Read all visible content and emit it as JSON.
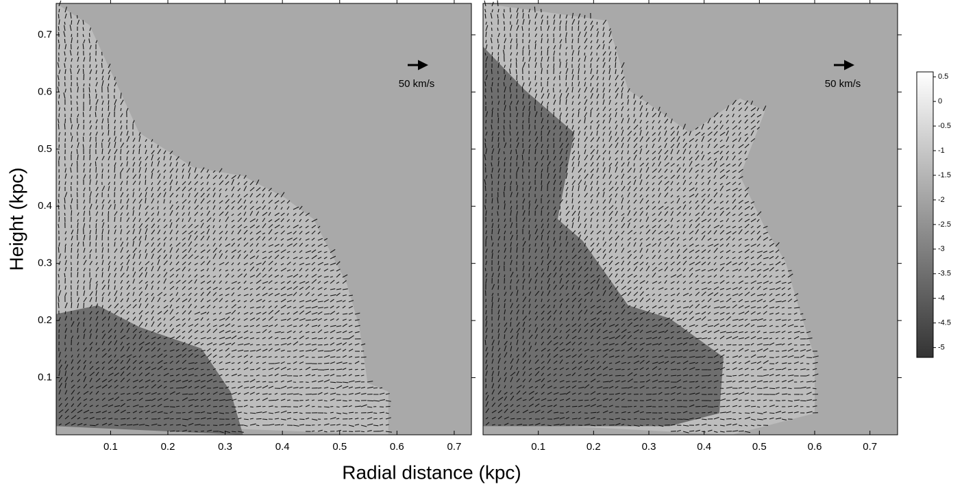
{
  "figure": {
    "xlabel": "Radial distance (kpc)",
    "ylabel": "Height (kpc)"
  },
  "chart_data": [
    {
      "type": "vector-field",
      "xlim": [
        0.005,
        0.73
      ],
      "ylim": [
        0,
        0.755
      ],
      "xticks": [
        0.1,
        0.2,
        0.3,
        0.4,
        0.5,
        0.6,
        0.7
      ],
      "yticks": [
        0.1,
        0.2,
        0.3,
        0.4,
        0.5,
        0.6,
        0.7
      ],
      "annotation": "50 km/s"
    },
    {
      "type": "vector-field",
      "xlim": [
        0,
        0.75
      ],
      "ylim": [
        0,
        0.755
      ],
      "xticks": [
        0.1,
        0.2,
        0.3,
        0.4,
        0.5,
        0.6,
        0.7
      ],
      "annotation": "50 km/s",
      "colorbar": {
        "lim": [
          -5.2,
          0.6
        ],
        "ticks": [
          0.5,
          0,
          -0.5,
          -1,
          -1.5,
          -2,
          -2.5,
          -3,
          -3.5,
          -4,
          -4.5,
          -5
        ]
      }
    }
  ]
}
